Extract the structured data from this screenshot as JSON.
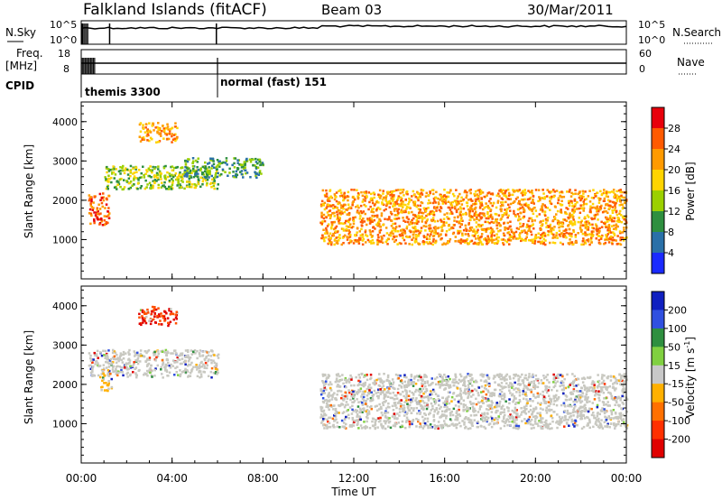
{
  "header": {
    "title": "Falkland Islands (fitACF)",
    "beam": "Beam 03",
    "date": "30/Mar/2011"
  },
  "strips": {
    "nsky_label": "N.Sky",
    "nsky_ticks": [
      "10^5",
      "10^0"
    ],
    "nsearch_label": "N.Search",
    "nsearch_ticks": [
      "10^5",
      "10^0"
    ],
    "freq_label": "Freq.",
    "freq_unit": "[MHz]",
    "freq_ticks": [
      "18",
      "8"
    ],
    "nave_label": "Nave",
    "nave_ticks": [
      "60",
      "0"
    ],
    "cpid_label": "CPID",
    "cpid_segments": [
      {
        "name": "themis 3300",
        "start": 0.0,
        "end": 6.0
      },
      {
        "name": "normal (fast) 151",
        "start": 6.0,
        "end": 24.0
      }
    ]
  },
  "chart_data": [
    {
      "type": "heatmap",
      "title": "Power",
      "xlabel": "Time UT",
      "ylabel": "Slant Range [km]",
      "xlim": [
        0,
        24
      ],
      "ylim": [
        0,
        4500
      ],
      "x_ticks": [
        "00:00",
        "04:00",
        "08:00",
        "12:00",
        "16:00",
        "20:00",
        "00:00"
      ],
      "y_ticks": [
        "1000",
        "2000",
        "3000",
        "4000"
      ],
      "colorbar": {
        "label": "Power [dB]",
        "ticks": [
          "28",
          "24",
          "20",
          "16",
          "12",
          "8",
          "4"
        ],
        "colors": [
          "#e8000b",
          "#ff5a00",
          "#ff9a00",
          "#ffd400",
          "#9bd000",
          "#2e8f3f",
          "#2a70a8",
          "#1a2aff"
        ]
      },
      "regions": [
        {
          "t0": 1.0,
          "t1": 6.0,
          "r0": 2300,
          "r1": 2900,
          "level": 12
        },
        {
          "t0": 4.5,
          "t1": 8.0,
          "r0": 2600,
          "r1": 3100,
          "level": 8
        },
        {
          "t0": 2.5,
          "t1": 4.2,
          "r0": 3500,
          "r1": 4000,
          "level": 20
        },
        {
          "t0": 0.3,
          "t1": 1.2,
          "r0": 1400,
          "r1": 2200,
          "level": 24
        },
        {
          "t0": 10.5,
          "t1": 24.0,
          "r0": 900,
          "r1": 2300,
          "level": 20
        }
      ]
    },
    {
      "type": "heatmap",
      "title": "Velocity",
      "xlabel": "Time UT",
      "ylabel": "Slant Range [km]",
      "xlim": [
        0,
        24
      ],
      "ylim": [
        0,
        4500
      ],
      "x_ticks": [
        "00:00",
        "04:00",
        "08:00",
        "12:00",
        "16:00",
        "20:00",
        "00:00"
      ],
      "y_ticks": [
        "1000",
        "2000",
        "3000",
        "4000"
      ],
      "colorbar": {
        "label": "Velocity [m s",
        "unit_exponent": "-1",
        "ticks": [
          "200",
          "100",
          "50",
          "15",
          "-15",
          "-50",
          "-100",
          "-200"
        ],
        "colors": [
          "#1020c0",
          "#3050e0",
          "#2e8f3f",
          "#80d040",
          "#c8c8c8",
          "#ffb000",
          "#ff7000",
          "#ff3000",
          "#e00000"
        ]
      },
      "regions": [
        {
          "t0": 0.3,
          "t1": 6.0,
          "r0": 2200,
          "r1": 2900,
          "level": 0
        },
        {
          "t0": 2.5,
          "t1": 4.2,
          "r0": 3500,
          "r1": 4000,
          "level": -150
        },
        {
          "t0": 10.5,
          "t1": 24.0,
          "r0": 900,
          "r1": 2300,
          "level": 0
        },
        {
          "t0": 0.8,
          "t1": 1.3,
          "r0": 1800,
          "r1": 2400,
          "level": -50
        }
      ]
    }
  ],
  "colors": {
    "axis": "#000000",
    "ground_grey": "#c8c8c0"
  }
}
